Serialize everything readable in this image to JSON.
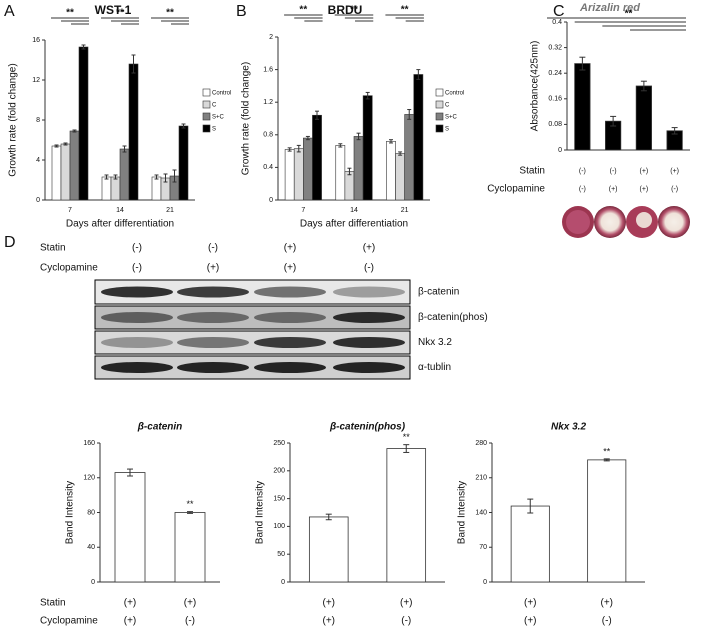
{
  "chart_data": [
    {
      "type": "bar",
      "panel": "A",
      "title": "WST-1",
      "x_label": "Days after differentiation",
      "y_label": "Growth rate (fold change)",
      "categories": [
        "7",
        "14",
        "21"
      ],
      "series": [
        {
          "name": "Control",
          "color": "#ffffff",
          "values": [
            5.4,
            2.3,
            2.3
          ],
          "errors": [
            0.1,
            0.2,
            0.2
          ]
        },
        {
          "name": "C",
          "color": "#d9d9d9",
          "values": [
            5.6,
            2.3,
            2.2
          ],
          "errors": [
            0.1,
            0.2,
            0.4
          ]
        },
        {
          "name": "S+C",
          "color": "#808080",
          "values": [
            6.9,
            5.1,
            2.4
          ],
          "errors": [
            0.1,
            0.3,
            0.6
          ]
        },
        {
          "name": "S",
          "color": "#000000",
          "values": [
            15.3,
            13.6,
            7.4
          ],
          "errors": [
            0.2,
            0.9,
            0.2
          ]
        }
      ],
      "ylim": [
        0,
        16
      ],
      "yticks": [
        0,
        4,
        8,
        12,
        16
      ],
      "annotations": [
        "**",
        "**",
        "**"
      ]
    },
    {
      "type": "bar",
      "panel": "B",
      "title": "BRDU",
      "x_label": "Days after differentiation",
      "y_label": "Growth rate (fold change)",
      "categories": [
        "7",
        "14",
        "21"
      ],
      "series": [
        {
          "name": "Control",
          "color": "#ffffff",
          "values": [
            0.62,
            0.67,
            0.72
          ],
          "errors": [
            0.02,
            0.02,
            0.02
          ]
        },
        {
          "name": "C",
          "color": "#d9d9d9",
          "values": [
            0.63,
            0.35,
            0.57
          ],
          "errors": [
            0.04,
            0.04,
            0.02
          ]
        },
        {
          "name": "S+C",
          "color": "#808080",
          "values": [
            0.76,
            0.78,
            1.05
          ],
          "errors": [
            0.02,
            0.04,
            0.06
          ]
        },
        {
          "name": "S",
          "color": "#000000",
          "values": [
            1.04,
            1.28,
            1.54
          ],
          "errors": [
            0.05,
            0.04,
            0.06
          ]
        }
      ],
      "ylim": [
        0,
        2
      ],
      "yticks": [
        0,
        0.4,
        0.8,
        1.2,
        1.6,
        2
      ],
      "annotations": [
        "**",
        "**",
        "**"
      ]
    },
    {
      "type": "bar",
      "panel": "C",
      "title": "Arizalin red",
      "y_label": "Absorbance(425nm)",
      "values": [
        0.27,
        0.09,
        0.2,
        0.06
      ],
      "errors": [
        0.02,
        0.015,
        0.015,
        0.01
      ],
      "color": "#000000",
      "ylim": [
        0,
        0.4
      ],
      "yticks": [
        0,
        0.08,
        0.16,
        0.24,
        0.32,
        0.4
      ],
      "treatment_names": [
        "Statin",
        "Cyclopamine"
      ],
      "treatments": [
        [
          "(-)",
          "(-)",
          "(+)",
          "(+)"
        ],
        [
          "(-)",
          "(+)",
          "(+)",
          "(-)"
        ]
      ],
      "annotations": [
        "**"
      ]
    },
    {
      "type": "bar",
      "title": "β-catenin",
      "y_label": "Band Intensity",
      "values": [
        126,
        80
      ],
      "errors": [
        4,
        1
      ],
      "color": "#ffffff",
      "ylim": [
        0,
        160
      ],
      "yticks": [
        0,
        40,
        80,
        120,
        160
      ],
      "treatments": [
        [
          "(+)",
          "(+)"
        ],
        [
          "(+)",
          "(-)"
        ]
      ],
      "annotations": [
        "**"
      ]
    },
    {
      "type": "bar",
      "title": "β-catenin(phos)",
      "y_label": "Band Intensity",
      "values": [
        117,
        240
      ],
      "errors": [
        5,
        7
      ],
      "color": "#ffffff",
      "ylim": [
        0,
        250
      ],
      "yticks": [
        0,
        50,
        100,
        150,
        200,
        250
      ],
      "treatments": [
        [
          "(+)",
          "(+)"
        ],
        [
          "(+)",
          "(-)"
        ]
      ],
      "annotations": [
        "**"
      ]
    },
    {
      "type": "bar",
      "title": "Nkx 3.2",
      "y_label": "Band Intensity",
      "values": [
        153,
        246
      ],
      "errors": [
        14,
        2
      ],
      "color": "#ffffff",
      "ylim": [
        0,
        280
      ],
      "yticks": [
        0,
        70,
        140,
        210,
        280
      ],
      "treatments": [
        [
          "(+)",
          "(+)"
        ],
        [
          "(+)",
          "(-)"
        ]
      ],
      "annotations": [
        "**"
      ]
    }
  ],
  "blot": {
    "panel": "D",
    "treatment_names": [
      "Statin",
      "Cyclopamine"
    ],
    "treatments": [
      [
        "(-)",
        "(-)",
        "(+)",
        "(+)"
      ],
      [
        "(-)",
        "(+)",
        "(+)",
        "(-)"
      ]
    ],
    "bands": [
      "β-catenin",
      "β-catenin(phos)",
      "Nkx 3.2",
      "α-tublin"
    ]
  },
  "bar_treatment_names": [
    "Statin",
    "Cyclopamine"
  ]
}
